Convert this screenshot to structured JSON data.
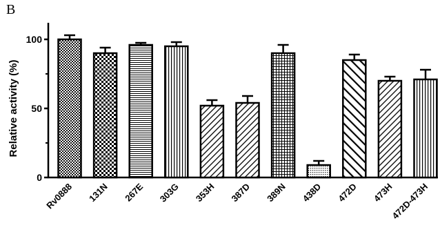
{
  "panel_label": "B",
  "chart_data": {
    "type": "bar",
    "title": "",
    "xlabel": "",
    "ylabel": "Relative activity (%)",
    "ylim": [
      0,
      110
    ],
    "yticks": [
      0,
      50,
      100
    ],
    "grid": false,
    "error_bars": true,
    "categories": [
      "Rv0888",
      "131N",
      "267E",
      "303G",
      "353H",
      "387D",
      "389N",
      "438D",
      "472D",
      "473H",
      "472D-473H"
    ],
    "values": [
      100,
      90,
      96,
      95,
      52,
      54,
      90,
      9,
      85,
      70,
      71
    ],
    "errors": [
      3,
      4,
      1.5,
      3,
      4,
      5,
      6,
      3,
      4,
      3,
      7
    ],
    "patterns": [
      "dense-dots",
      "checker",
      "horizontal-lines",
      "vertical-lines",
      "diagonal-up",
      "diagonal-up",
      "grid",
      "fine-dots",
      "diagonal-down",
      "diagonal-up",
      "vertical-lines"
    ],
    "colors": {
      "bar_stroke": "#000000",
      "pattern": "#000000",
      "background": "#ffffff"
    }
  }
}
